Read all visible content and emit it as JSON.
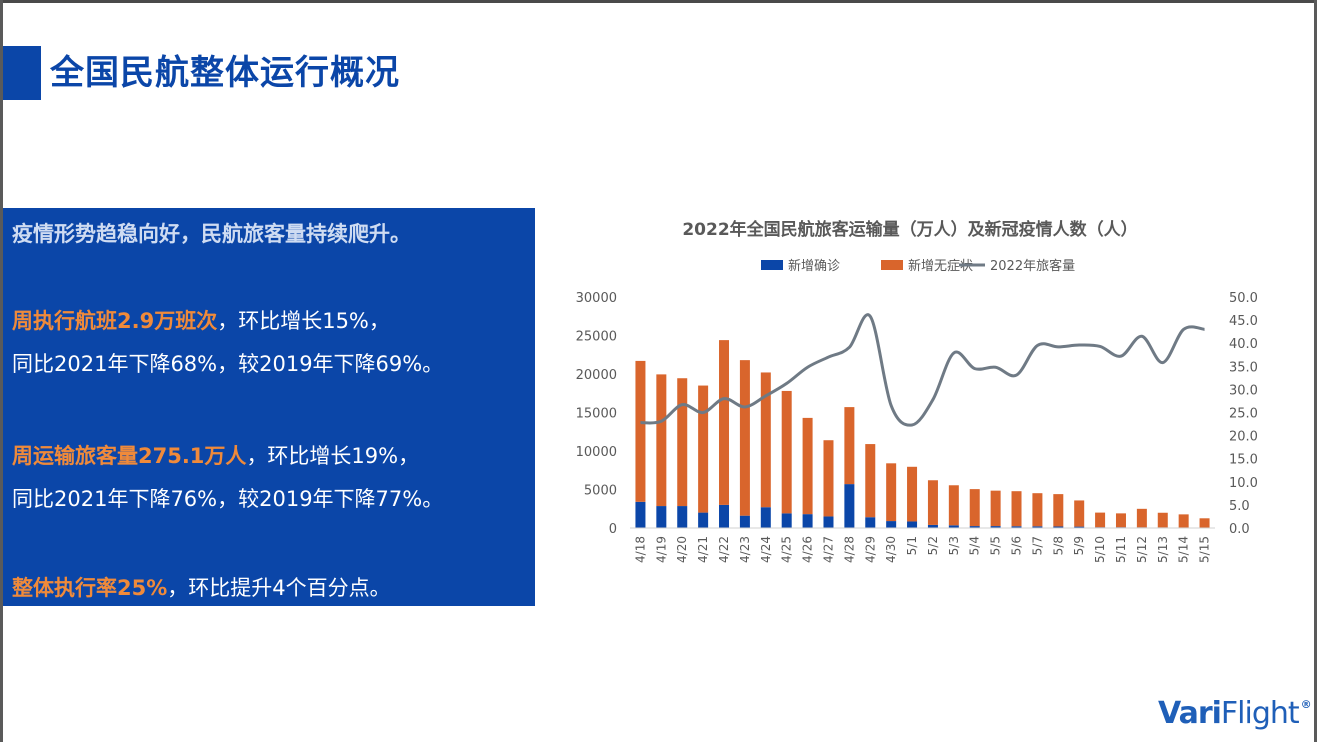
{
  "page": {
    "title": "全国民航整体运行概况"
  },
  "panel": {
    "headline": "疫情形势趋稳向好，民航旅客量持续爬升。",
    "flights_highlight": "周执行航班2.9万班次",
    "flights_rest": "，环比增长15%，",
    "flights_line2": "同比2021年下降68%，较2019年下降69%。",
    "pax_highlight": "周运输旅客量275.1万人",
    "pax_rest": "，环比增长19%，",
    "pax_line2": "同比2021年下降76%，较2019年下降77%。",
    "rate_highlight": "整体执行率25%",
    "rate_rest": "，环比提升4个百分点。"
  },
  "logo": {
    "text_bold": "Vari",
    "text_light": "Flight",
    "mark": "®"
  },
  "colors": {
    "brand_blue": "#0b46a8",
    "confirmed": "#0b46a8",
    "asymptomatic": "#d9652c",
    "passengers": "#6f7a85",
    "highlight": "#f08a3a"
  },
  "chart_data": {
    "type": "bar",
    "stacked": true,
    "title": "2022年全国民航旅客运输量（万人）及新冠疫情人数（人）",
    "legend_position": "top",
    "categories": [
      "4/18",
      "4/19",
      "4/20",
      "4/21",
      "4/22",
      "4/23",
      "4/24",
      "4/25",
      "4/26",
      "4/27",
      "4/28",
      "4/29",
      "4/30",
      "5/1",
      "5/2",
      "5/3",
      "5/4",
      "5/5",
      "5/6",
      "5/7",
      "5/8",
      "5/9",
      "5/10",
      "5/11",
      "5/12",
      "5/13",
      "5/14",
      "5/15"
    ],
    "y_left": {
      "min": 0,
      "max": 30000,
      "ticks": [
        "0",
        "5000",
        "10000",
        "15000",
        "20000",
        "25000",
        "30000"
      ]
    },
    "y_right": {
      "min": 0,
      "max": 50,
      "ticks": [
        "0.0",
        "5.0",
        "10.0",
        "15.0",
        "20.0",
        "25.0",
        "30.0",
        "35.0",
        "40.0",
        "45.0",
        "50.0"
      ]
    },
    "grid": false,
    "series": [
      {
        "name": "新增确诊",
        "kind": "bar",
        "axis": "left",
        "color": "#0b46a8",
        "values": [
          3400,
          2850,
          2850,
          2000,
          3000,
          1600,
          2700,
          1900,
          1800,
          1500,
          5700,
          1400,
          900,
          850,
          400,
          350,
          250,
          250,
          230,
          220,
          200,
          180,
          100,
          100,
          90,
          80,
          70,
          60
        ]
      },
      {
        "name": "新增无症状",
        "kind": "bar",
        "axis": "left",
        "color": "#d9652c",
        "values": [
          18300,
          17100,
          16600,
          16500,
          21400,
          20200,
          17500,
          15900,
          12500,
          9900,
          10000,
          9500,
          7500,
          7100,
          5800,
          5200,
          4800,
          4600,
          4550,
          4300,
          4200,
          3400,
          1900,
          1800,
          2400,
          1900,
          1700,
          1200
        ]
      },
      {
        "name": "2022年旅客量",
        "kind": "line",
        "axis": "right",
        "color": "#6f7a85",
        "values": [
          22.8,
          23.1,
          26.7,
          25.0,
          28.0,
          26.2,
          28.6,
          31.3,
          34.8,
          37.0,
          39.1,
          45.8,
          26.5,
          22.3,
          27.8,
          37.9,
          34.5,
          34.8,
          33.1,
          39.5,
          39.2,
          39.6,
          39.3,
          37.2,
          41.5,
          35.8,
          43.0,
          43.0
        ]
      }
    ]
  }
}
